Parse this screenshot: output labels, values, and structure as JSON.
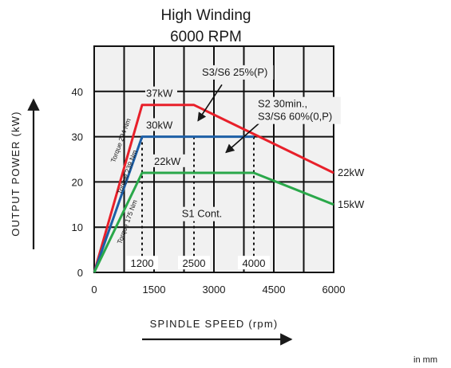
{
  "chart_data": {
    "type": "line",
    "title": "High Winding",
    "subtitle": "6000 RPM",
    "xlabel": "SPINDLE SPEED (rpm)",
    "ylabel": "OUTPUT POWER (kW)",
    "xlim": [
      0,
      6000
    ],
    "ylim": [
      0,
      50
    ],
    "x_ticks": [
      {
        "value": 0,
        "label": "0"
      },
      {
        "value": 1500,
        "label": "1500"
      },
      {
        "value": 3000,
        "label": "3000"
      },
      {
        "value": 4500,
        "label": "4500"
      },
      {
        "value": 6000,
        "label": "6000"
      }
    ],
    "y_ticks": [
      {
        "value": 0,
        "label": "0"
      },
      {
        "value": 10,
        "label": "10"
      },
      {
        "value": 20,
        "label": "20"
      },
      {
        "value": 30,
        "label": "30"
      },
      {
        "value": 40,
        "label": "40"
      }
    ],
    "grid": true,
    "series": [
      {
        "name": "S3/S6 25%(P)",
        "color": "#e8202a",
        "points": [
          [
            0,
            0
          ],
          [
            1200,
            37
          ],
          [
            2500,
            37
          ],
          [
            6000,
            22
          ]
        ]
      },
      {
        "name": "S2 30min., S3/S6 60%(0,P)",
        "color": "#1d5fa6",
        "points": [
          [
            0,
            0
          ],
          [
            1200,
            30
          ],
          [
            4000,
            30
          ]
        ]
      },
      {
        "name": "S1 Cont.",
        "color": "#2aa84a",
        "points": [
          [
            0,
            0
          ],
          [
            1200,
            22
          ],
          [
            4000,
            22
          ],
          [
            6000,
            15
          ]
        ]
      }
    ],
    "power_labels": [
      {
        "text": "37kW",
        "x": 1300,
        "y": 38.8
      },
      {
        "text": "30kW",
        "x": 1300,
        "y": 31.8
      },
      {
        "text": "22kW",
        "x": 1500,
        "y": 23.8
      }
    ],
    "end_labels": [
      {
        "text": "22kW",
        "x": 6000,
        "y": 22
      },
      {
        "text": "15kW",
        "x": 6000,
        "y": 15
      }
    ],
    "torque_labels": [
      {
        "text": "Torque 294 Nm",
        "x": 720,
        "y": 29
      },
      {
        "text": "Torque 239 Nm",
        "x": 880,
        "y": 22
      },
      {
        "text": "Torque 175 Nm",
        "x": 880,
        "y": 11
      }
    ],
    "speed_markers": [
      {
        "value": 1200,
        "label": "1200"
      },
      {
        "value": 2500,
        "label": "2500"
      },
      {
        "value": 4000,
        "label": "4000"
      }
    ],
    "annotations": [
      {
        "lines": [
          "S3/S6 25%(P)"
        ],
        "x": 2700,
        "y": 43.5,
        "anchor": "start",
        "arrow_from": [
          3200,
          41.5
        ],
        "arrow_to": [
          2600,
          33.5
        ]
      },
      {
        "lines": [
          "S2 30min.,",
          "S3/S6 60%(0,P)"
        ],
        "x": 4100,
        "y": 36.5,
        "anchor": "start",
        "arrow_from": [
          4200,
          33.5
        ],
        "arrow_to": [
          3300,
          26.5
        ]
      },
      {
        "lines": [
          "S1 Cont."
        ],
        "x": 2700,
        "y": 12.2,
        "anchor": "middle"
      }
    ]
  },
  "unit_note": "in mm"
}
